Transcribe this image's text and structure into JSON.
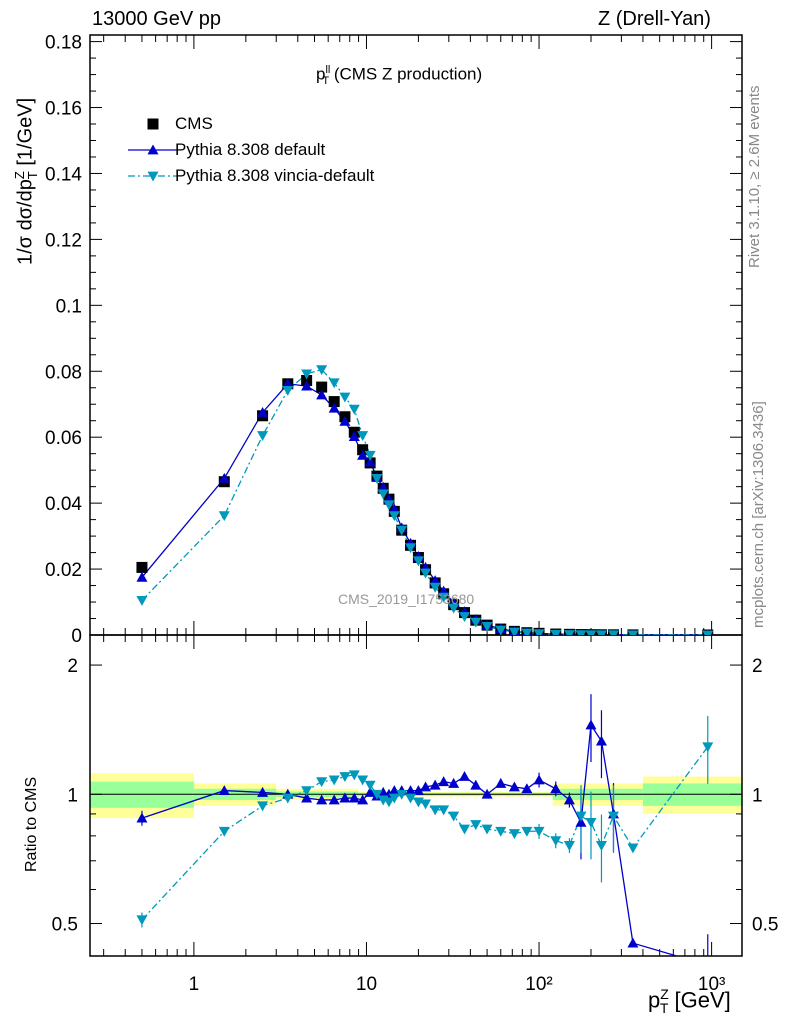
{
  "header": {
    "left": "13000 GeV pp",
    "right": "Z (Drell-Yan)"
  },
  "side_labels": {
    "rivet": "Rivet 3.1.10, ≥ 2.6M events",
    "mcplots": "mcplots.cern.ch [arXiv:1306.3436]"
  },
  "plot_title": "(CMS Z production)",
  "plot_title_symbol": "p",
  "plot_title_sup": "ll",
  "plot_title_sub": "T",
  "watermark": "CMS_2019_I1753680",
  "y_axis_label": "1/σ dσ/dp",
  "y_axis_label_sup": "Z",
  "y_axis_label_sub": "T",
  "y_axis_label_unit": "[1/GeV]",
  "ratio_axis_label": "Ratio to CMS",
  "x_axis_label": "[GeV]",
  "x_axis_symbol": "p",
  "x_axis_sup": "Z",
  "x_axis_sub": "T",
  "legend": [
    {
      "label": "CMS",
      "color": "#000000",
      "marker": "square"
    },
    {
      "label": "Pythia 8.308 default",
      "color": "#0000cc",
      "marker": "triangle-up"
    },
    {
      "label": "Pythia 8.308 vincia-default",
      "color": "#0099bb",
      "marker": "triangle-down"
    }
  ],
  "colors": {
    "data": "#000000",
    "default": "#0000cc",
    "vincia": "#0099bb",
    "band_inner": "#99ff99",
    "band_outer": "#ffff99"
  },
  "chart_data": {
    "type": "scatter",
    "x_scale": "log",
    "xlim": [
      0.25,
      1500
    ],
    "ylim": [
      0,
      0.182
    ],
    "ratio_ylim": [
      0.42,
      2.35
    ],
    "ratio_scale": "log",
    "y_ticks": [
      "0",
      "0.02",
      "0.04",
      "0.06",
      "0.08",
      "0.1",
      "0.12",
      "0.14",
      "0.16",
      "0.18"
    ],
    "ratio_ticks": [
      "0.5",
      "1",
      "2"
    ],
    "x_ticks": [
      "1",
      "10",
      "10²",
      "10³"
    ],
    "x": [
      0.5,
      1.5,
      2.5,
      3.5,
      4.5,
      5.5,
      6.5,
      7.5,
      8.5,
      9.5,
      10.5,
      11.5,
      12.5,
      13.5,
      14.5,
      16,
      18,
      20,
      22,
      25,
      28,
      32,
      37,
      43,
      50,
      60,
      72,
      85,
      100,
      125,
      150,
      175,
      200,
      230,
      270,
      350,
      950
    ],
    "series": [
      {
        "name": "CMS",
        "values": [
          0.0205,
          0.0465,
          0.0665,
          0.0762,
          0.0772,
          0.0752,
          0.0708,
          0.0662,
          0.0615,
          0.0562,
          0.0522,
          0.0482,
          0.0445,
          0.0412,
          0.0375,
          0.0318,
          0.0272,
          0.0235,
          0.0198,
          0.0158,
          0.0125,
          0.0092,
          0.0068,
          0.0045,
          0.003,
          0.0018,
          0.0011,
          0.0007,
          0.0005,
          0.0003,
          0.0002,
          0.00014,
          0.0001,
          8e-05,
          6e-05,
          4e-05,
          1e-05
        ]
      },
      {
        "name": "Pythia 8.308 default",
        "values": [
          0.0175,
          0.0475,
          0.0675,
          0.0762,
          0.0755,
          0.0728,
          0.0688,
          0.0648,
          0.0602,
          0.0545,
          0.0525,
          0.0478,
          0.0448,
          0.0412,
          0.0382,
          0.0325,
          0.0278,
          0.0238,
          0.0205,
          0.0165,
          0.0133,
          0.0098,
          0.0071,
          0.0047,
          0.003,
          0.0019,
          0.0011,
          0.0007,
          0.0005,
          0.0003,
          0.0002,
          0.00014,
          0.0001,
          8e-05,
          6e-05,
          4e-05,
          1e-05
        ],
        "ratio": [
          0.88,
          1.02,
          1.01,
          1.0,
          0.98,
          0.97,
          0.97,
          0.98,
          0.98,
          0.97,
          1.01,
          0.99,
          1.01,
          1.0,
          1.02,
          1.02,
          1.02,
          1.02,
          1.04,
          1.05,
          1.07,
          1.06,
          1.1,
          1.05,
          1.0,
          1.06,
          1.04,
          1.03,
          1.08,
          1.03,
          0.97,
          0.86,
          1.45,
          1.33,
          0.9,
          0.45,
          0.4
        ]
      },
      {
        "name": "Pythia 8.308 vincia-default",
        "values": [
          0.0105,
          0.0362,
          0.0605,
          0.0742,
          0.0792,
          0.0805,
          0.0765,
          0.0722,
          0.0685,
          0.0605,
          0.0545,
          0.0475,
          0.0428,
          0.0395,
          0.0362,
          0.0318,
          0.0265,
          0.0225,
          0.0188,
          0.0145,
          0.0115,
          0.0082,
          0.0056,
          0.0039,
          0.0026,
          0.0015,
          0.0009,
          0.0006,
          0.0004,
          0.00023,
          0.00015,
          0.0001,
          8e-05,
          6e-05,
          5e-05,
          4e-05,
          1e-05
        ],
        "ratio": [
          0.51,
          0.82,
          0.94,
          0.98,
          1.02,
          1.07,
          1.08,
          1.1,
          1.11,
          1.08,
          1.05,
          1.0,
          0.97,
          0.96,
          0.98,
          1.0,
          0.98,
          0.96,
          0.95,
          0.92,
          0.92,
          0.89,
          0.83,
          0.85,
          0.83,
          0.82,
          0.81,
          0.82,
          0.82,
          0.78,
          0.76,
          0.89,
          0.86,
          0.76,
          0.89,
          0.75,
          1.29
        ]
      }
    ]
  }
}
